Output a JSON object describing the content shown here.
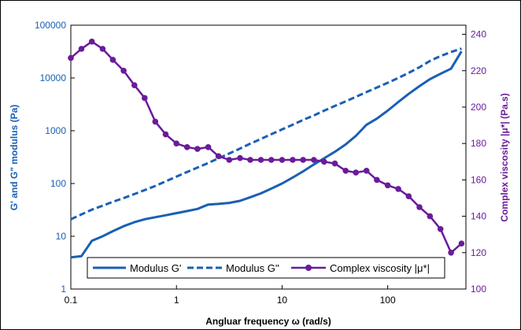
{
  "chart_data": {
    "type": "line",
    "xlabel": "Angluar frequency ω (rad/s)",
    "ylabel": "G' and G\" modulus (Pa)",
    "y2label": "Complex viscosity |μ*| (Pa.s)",
    "xscale": "log",
    "yscale": "log",
    "xlim": [
      0.1,
      550
    ],
    "ylim": [
      1,
      100000
    ],
    "y2lim": [
      100,
      245
    ],
    "xticks": [
      "0.1",
      "1",
      "10",
      "100"
    ],
    "yticks": [
      "1",
      "10",
      "100",
      "1000",
      "10000",
      "100000"
    ],
    "y2ticks": [
      "100",
      "120",
      "140",
      "160",
      "180",
      "200",
      "220",
      "240"
    ],
    "grid": false,
    "legend_position": "bottom-center",
    "colors": {
      "g_prime": "#1a5fb4",
      "g_double": "#1a5fb4",
      "viscosity": "#6a1b9a",
      "frame": "#000000"
    },
    "series": [
      {
        "name": "Modulus G'",
        "axis": "left",
        "style": "solid",
        "x": [
          0.1,
          0.126,
          0.158,
          0.2,
          0.25,
          0.316,
          0.4,
          0.5,
          0.63,
          0.79,
          1.0,
          1.26,
          1.58,
          2.0,
          2.5,
          3.16,
          4.0,
          5.0,
          6.3,
          7.9,
          10,
          12.6,
          15.8,
          20,
          25,
          31.6,
          40,
          50,
          63,
          79,
          100,
          126,
          158,
          200,
          251,
          316,
          398,
          500
        ],
        "values": [
          4.0,
          4.2,
          8.2,
          10.0,
          12.5,
          15.5,
          18.5,
          21.0,
          23.0,
          25.0,
          27.5,
          30.0,
          33.0,
          40.0,
          41.0,
          43.0,
          47.0,
          55.0,
          65.0,
          80.0,
          100,
          130,
          170,
          230,
          300,
          400,
          550,
          800,
          1300,
          1700,
          2400,
          3500,
          5000,
          7000,
          9500,
          12000,
          15000,
          32000
        ]
      },
      {
        "name": "Modulus G''",
        "axis": "left",
        "style": "dashed",
        "x": [
          0.1,
          0.126,
          0.158,
          0.2,
          0.25,
          0.316,
          0.4,
          0.5,
          0.63,
          0.79,
          1.0,
          1.26,
          1.58,
          2.0,
          2.5,
          3.16,
          4.0,
          5.0,
          6.3,
          7.9,
          10,
          12.6,
          15.8,
          20,
          25,
          31.6,
          40,
          50,
          63,
          79,
          100,
          126,
          158,
          200,
          251,
          316,
          398,
          500
        ],
        "values": [
          21,
          26,
          32,
          38,
          45,
          53,
          63,
          75,
          90,
          110,
          135,
          165,
          200,
          245,
          300,
          370,
          460,
          570,
          700,
          860,
          1060,
          1300,
          1600,
          1950,
          2400,
          2950,
          3600,
          4400,
          5400,
          6600,
          8100,
          10000,
          12500,
          16000,
          21000,
          26000,
          31000,
          36000
        ]
      },
      {
        "name": "Complex viscosity |μ*|",
        "axis": "right",
        "style": "solid-marker",
        "x": [
          0.1,
          0.126,
          0.158,
          0.2,
          0.25,
          0.316,
          0.4,
          0.5,
          0.63,
          0.79,
          1.0,
          1.26,
          1.58,
          2.0,
          2.5,
          3.16,
          4.0,
          5.0,
          6.3,
          7.9,
          10,
          12.6,
          15.8,
          20,
          25,
          31.6,
          40,
          50,
          63,
          79,
          100,
          126,
          158,
          200,
          251,
          316,
          398,
          500
        ],
        "values": [
          227,
          232,
          236,
          232,
          226,
          220,
          212,
          205,
          192,
          185,
          180,
          178,
          177,
          178,
          173,
          171,
          172,
          171,
          171,
          171,
          171,
          171,
          171,
          171,
          170,
          169,
          165,
          164,
          165,
          160,
          157,
          155,
          151,
          145,
          140,
          133,
          120,
          125
        ]
      }
    ]
  }
}
